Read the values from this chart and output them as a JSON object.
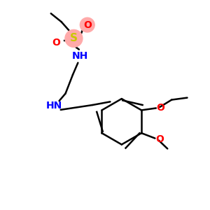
{
  "bg_color": "#ffffff",
  "atom_colors": {
    "S": "#c8c800",
    "O": "#ff0000",
    "N": "#0000ff",
    "C": "#000000"
  },
  "bond_color": "#000000",
  "ring_color": "#000000"
}
